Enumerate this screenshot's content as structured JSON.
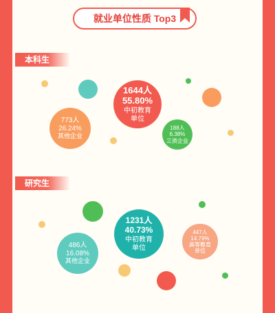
{
  "header": {
    "title": "就业单位性质 Top3"
  },
  "colors": {
    "red": "#f25a4f",
    "orange": "#f99d5e",
    "teal": "#1fb2ab",
    "mint": "#5fcbbf",
    "green": "#4fbf55",
    "yellow": "#f7c975",
    "salmon": "#f7a784"
  },
  "undergrad": {
    "label": "本科生",
    "main": {
      "count": "1644人",
      "percent": "55.80%",
      "type_line1": "中初教育",
      "type_line2": "单位"
    },
    "second": {
      "count": "773人",
      "percent": "26.24%",
      "type_line1": "其他企业"
    },
    "third": {
      "count": "188人",
      "percent": "6.38%",
      "type_line1": "三资企业"
    }
  },
  "graduate": {
    "label": "研究生",
    "main": {
      "count": "1231人",
      "percent": "40.73%",
      "type_line1": "中初教育",
      "type_line2": "单位"
    },
    "second": {
      "count": "486人",
      "percent": "16.08%",
      "type_line1": "其他企业"
    },
    "third": {
      "count": "447人",
      "percent": "14.79%",
      "type_line1": "高等教育",
      "type_line2": "单位"
    }
  }
}
